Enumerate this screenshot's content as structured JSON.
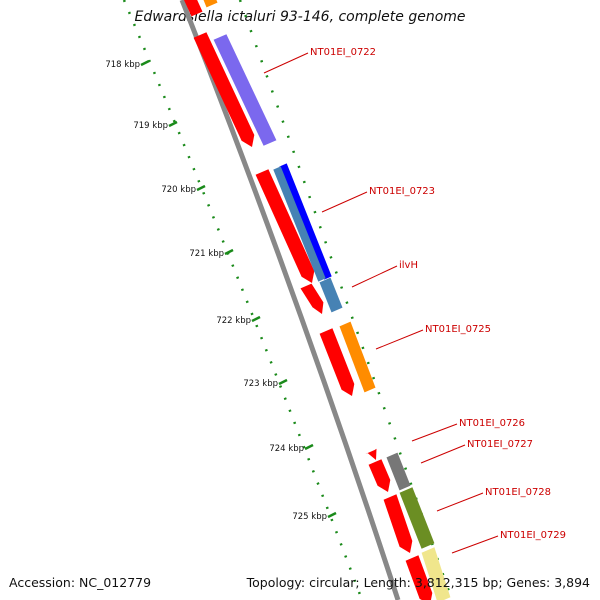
{
  "title": "Edwardsiella ictaluri 93-146, complete genome",
  "accession": "Accession: NC_012779",
  "summary": "Topology: circular; Length: 3,812,315 bp; Genes: 3,894",
  "ticks": [
    "718 kbp",
    "719 kbp",
    "720 kbp",
    "721 kbp",
    "722 kbp",
    "723 kbp",
    "724 kbp",
    "725 kbp"
  ],
  "genes": [
    "NT01EI_0722",
    "NT01EI_0723",
    "ilvH",
    "NT01EI_0725",
    "NT01EI_0726",
    "NT01EI_0727",
    "NT01EI_0728",
    "NT01EI_0729"
  ],
  "colors": {
    "cds": "#ff0000",
    "tick": "#1a8a1a",
    "backbone": "#888888",
    "label": "#cc0000",
    "feature_0722": "#7b68ee",
    "feature_0723": "#0000ff",
    "feature_ilvH": "#4682b4",
    "feature_0725": "#ff8c00",
    "feature_0727": "#777777",
    "feature_0728": "#6b8e23",
    "feature_0729": "#f0e68c"
  }
}
